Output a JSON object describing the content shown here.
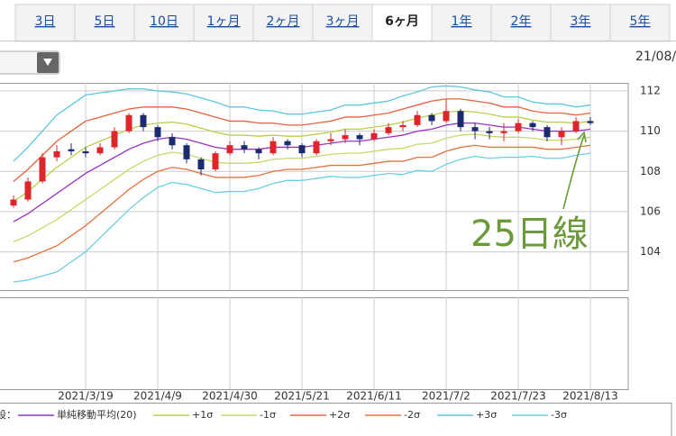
{
  "tabs": [
    "3日",
    "5日",
    "10日",
    "1ヶ月",
    "2ヶ月",
    "3ヶ月",
    "6ヶ月",
    "1年",
    "2年",
    "3年",
    "5年"
  ],
  "selected_tab": 6,
  "date_header": "21/08/",
  "chart_data": {
    "type": "candlestick",
    "categories": [
      null,
      null,
      null,
      null,
      null,
      "2021/3/19",
      null,
      null,
      null,
      null,
      "2021/4/9",
      null,
      null,
      null,
      null,
      "2021/4/30",
      null,
      null,
      null,
      null,
      "2021/5/21",
      null,
      null,
      null,
      null,
      "2021/6/11",
      null,
      null,
      null,
      null,
      "2021/7/2",
      null,
      null,
      null,
      null,
      "2021/7/23",
      null,
      null,
      null,
      null,
      "2021/8/13"
    ],
    "open": [
      106.3,
      106.6,
      107.5,
      108.7,
      109.1,
      109.0,
      108.9,
      109.2,
      110.0,
      110.8,
      110.2,
      109.7,
      109.3,
      108.6,
      108.1,
      108.9,
      109.3,
      109.1,
      108.9,
      109.5,
      109.3,
      108.9,
      109.5,
      109.6,
      109.8,
      109.6,
      109.9,
      110.2,
      110.3,
      110.8,
      110.5,
      111.0,
      110.2,
      110.0,
      109.9,
      110.0,
      110.4,
      110.2,
      109.7,
      110.0,
      110.5
    ],
    "high": [
      106.8,
      107.7,
      108.9,
      109.3,
      109.4,
      109.2,
      109.4,
      110.2,
      110.9,
      110.9,
      110.3,
      109.9,
      109.4,
      108.7,
      109.0,
      109.5,
      109.5,
      109.2,
      109.7,
      109.6,
      109.4,
      109.6,
      109.9,
      110.1,
      109.9,
      110.1,
      110.4,
      110.5,
      111.0,
      110.9,
      111.6,
      111.1,
      110.4,
      110.2,
      110.4,
      110.6,
      110.5,
      110.3,
      110.2,
      110.7,
      110.7
    ],
    "low": [
      106.2,
      106.5,
      107.4,
      108.5,
      108.8,
      108.7,
      108.8,
      109.1,
      109.9,
      110.0,
      109.5,
      109.1,
      108.4,
      107.8,
      108.0,
      108.8,
      108.9,
      108.6,
      108.8,
      109.1,
      108.7,
      108.8,
      109.3,
      109.4,
      109.3,
      109.5,
      109.8,
      110.0,
      110.2,
      110.3,
      110.4,
      110.0,
      109.6,
      109.6,
      109.5,
      109.9,
      110.0,
      109.5,
      109.3,
      109.9,
      110.3
    ],
    "close": [
      106.6,
      107.5,
      108.7,
      109.0,
      109.0,
      108.9,
      109.2,
      110.0,
      110.8,
      110.2,
      109.7,
      109.3,
      108.6,
      108.1,
      108.9,
      109.3,
      109.1,
      108.9,
      109.5,
      109.3,
      108.9,
      109.5,
      109.6,
      109.8,
      109.6,
      109.9,
      110.2,
      110.3,
      110.8,
      110.5,
      111.0,
      110.2,
      110.0,
      109.9,
      110.0,
      110.4,
      110.2,
      109.7,
      110.0,
      110.5,
      110.4
    ],
    "up_color": "#e0242b",
    "down_color": "#1c2b6e",
    "series": [
      {
        "name": "単純移動平均(20)",
        "color": "#9b30c8",
        "values": [
          105.5,
          105.9,
          106.4,
          106.9,
          107.4,
          107.9,
          108.3,
          108.7,
          109.1,
          109.4,
          109.6,
          109.7,
          109.6,
          109.4,
          109.2,
          109.1,
          109.1,
          109.1,
          109.2,
          109.2,
          109.2,
          109.3,
          109.4,
          109.5,
          109.5,
          109.6,
          109.7,
          109.8,
          110.0,
          110.1,
          110.3,
          110.4,
          110.4,
          110.3,
          110.2,
          110.2,
          110.1,
          110.0,
          110.0,
          110.0,
          110.1
        ]
      },
      {
        "name": "+1σ",
        "color": "#b5d24a",
        "values": [
          106.5,
          107.0,
          107.6,
          108.2,
          108.7,
          109.2,
          109.5,
          109.8,
          110.1,
          110.3,
          110.4,
          110.45,
          110.35,
          110.15,
          109.95,
          109.8,
          109.8,
          109.75,
          109.8,
          109.75,
          109.75,
          109.85,
          109.95,
          110.1,
          110.1,
          110.2,
          110.3,
          110.45,
          110.65,
          110.8,
          110.95,
          111.0,
          110.95,
          110.85,
          110.7,
          110.7,
          110.55,
          110.45,
          110.45,
          110.4,
          110.5
        ]
      },
      {
        "name": "-1σ",
        "color": "#c9d86a",
        "values": [
          104.5,
          104.8,
          105.2,
          105.6,
          106.1,
          106.6,
          107.1,
          107.6,
          108.1,
          108.5,
          108.8,
          108.95,
          108.85,
          108.65,
          108.45,
          108.4,
          108.4,
          108.45,
          108.6,
          108.65,
          108.65,
          108.75,
          108.85,
          108.9,
          108.9,
          109.0,
          109.1,
          109.15,
          109.35,
          109.4,
          109.65,
          109.8,
          109.85,
          109.75,
          109.7,
          109.7,
          109.65,
          109.55,
          109.55,
          109.6,
          109.7
        ]
      },
      {
        "name": "+2σ",
        "color": "#e8603c",
        "values": [
          107.5,
          108.1,
          108.8,
          109.5,
          110.0,
          110.5,
          110.7,
          110.9,
          111.1,
          111.2,
          111.2,
          111.2,
          111.1,
          110.9,
          110.7,
          110.5,
          110.5,
          110.4,
          110.4,
          110.3,
          110.3,
          110.4,
          110.5,
          110.7,
          110.7,
          110.8,
          110.9,
          111.1,
          111.3,
          111.5,
          111.6,
          111.6,
          111.5,
          111.4,
          111.2,
          111.2,
          111.0,
          110.9,
          110.9,
          110.8,
          110.9
        ]
      },
      {
        "name": "-2σ",
        "color": "#e8703c",
        "values": [
          103.5,
          103.7,
          104.0,
          104.3,
          104.8,
          105.3,
          105.9,
          106.5,
          107.1,
          107.6,
          108.0,
          108.2,
          108.1,
          107.9,
          107.7,
          107.7,
          107.7,
          107.8,
          108.0,
          108.1,
          108.1,
          108.2,
          108.3,
          108.3,
          108.3,
          108.4,
          108.5,
          108.5,
          108.7,
          108.7,
          109.0,
          109.2,
          109.3,
          109.2,
          109.2,
          109.2,
          109.2,
          109.1,
          109.1,
          109.2,
          109.3
        ]
      },
      {
        "name": "+3σ",
        "color": "#5cc6e0",
        "values": [
          108.5,
          109.2,
          110.0,
          110.8,
          111.3,
          111.8,
          111.9,
          112.0,
          112.1,
          112.1,
          112.0,
          111.95,
          111.85,
          111.65,
          111.45,
          111.2,
          111.2,
          111.05,
          111.0,
          110.85,
          110.85,
          110.95,
          111.05,
          111.3,
          111.3,
          111.4,
          111.5,
          111.75,
          111.95,
          112.2,
          112.25,
          112.2,
          112.05,
          111.95,
          111.7,
          111.7,
          111.45,
          111.35,
          111.35,
          111.2,
          111.3
        ]
      },
      {
        "name": "-3σ",
        "color": "#6ccde6",
        "values": [
          102.5,
          102.6,
          102.8,
          103.0,
          103.5,
          104.0,
          104.7,
          105.4,
          106.1,
          106.7,
          107.2,
          107.45,
          107.35,
          107.15,
          106.95,
          107.0,
          107.0,
          107.15,
          107.4,
          107.55,
          107.55,
          107.65,
          107.75,
          107.7,
          107.7,
          107.8,
          107.9,
          107.85,
          108.05,
          108.0,
          108.35,
          108.6,
          108.75,
          108.65,
          108.7,
          108.7,
          108.75,
          108.65,
          108.65,
          108.8,
          108.9
        ]
      }
    ],
    "ylim": [
      102.1,
      112.4
    ],
    "yticks": [
      104,
      106,
      108,
      110,
      112
    ],
    "grid": true,
    "legend_prefix": "設：",
    "annotation": "25日線"
  }
}
